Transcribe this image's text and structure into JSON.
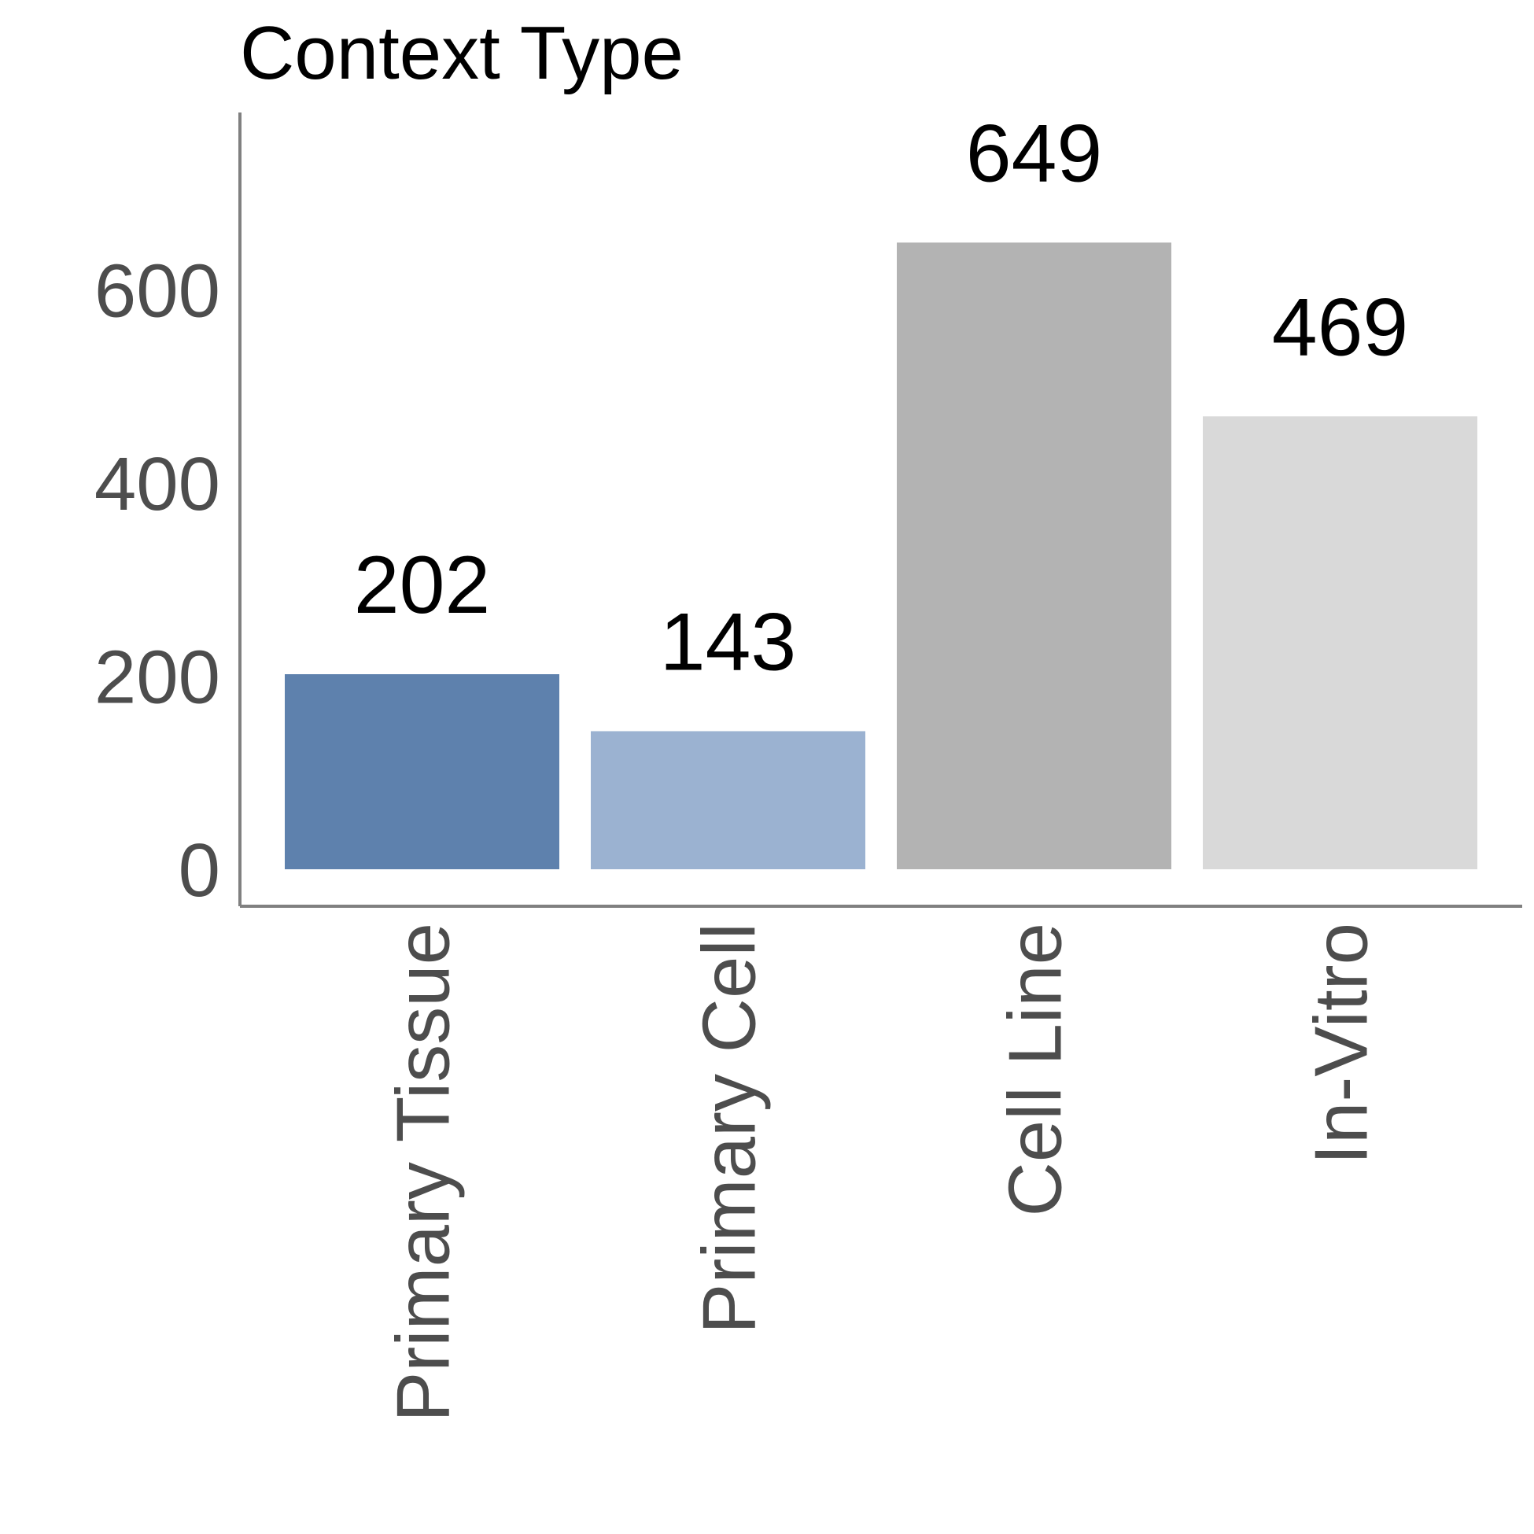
{
  "chart_data": {
    "type": "bar",
    "title": "Context Type",
    "xlabel": "",
    "ylabel": "",
    "categories": [
      "Primary Tissue",
      "Primary Cell",
      "Cell Line",
      "In-Vitro"
    ],
    "values": [
      202,
      143,
      649,
      469
    ],
    "data_labels": [
      "202",
      "143",
      "649",
      "469"
    ],
    "colors": [
      "#5e81ad",
      "#9bb2d1",
      "#b3b3b3",
      "#d9d9d9"
    ],
    "ylim": [
      0,
      750
    ],
    "yticks": [
      0,
      200,
      400,
      600
    ],
    "ytick_labels": [
      "0",
      "200",
      "400",
      "600"
    ],
    "grid": false,
    "legend": "none"
  }
}
